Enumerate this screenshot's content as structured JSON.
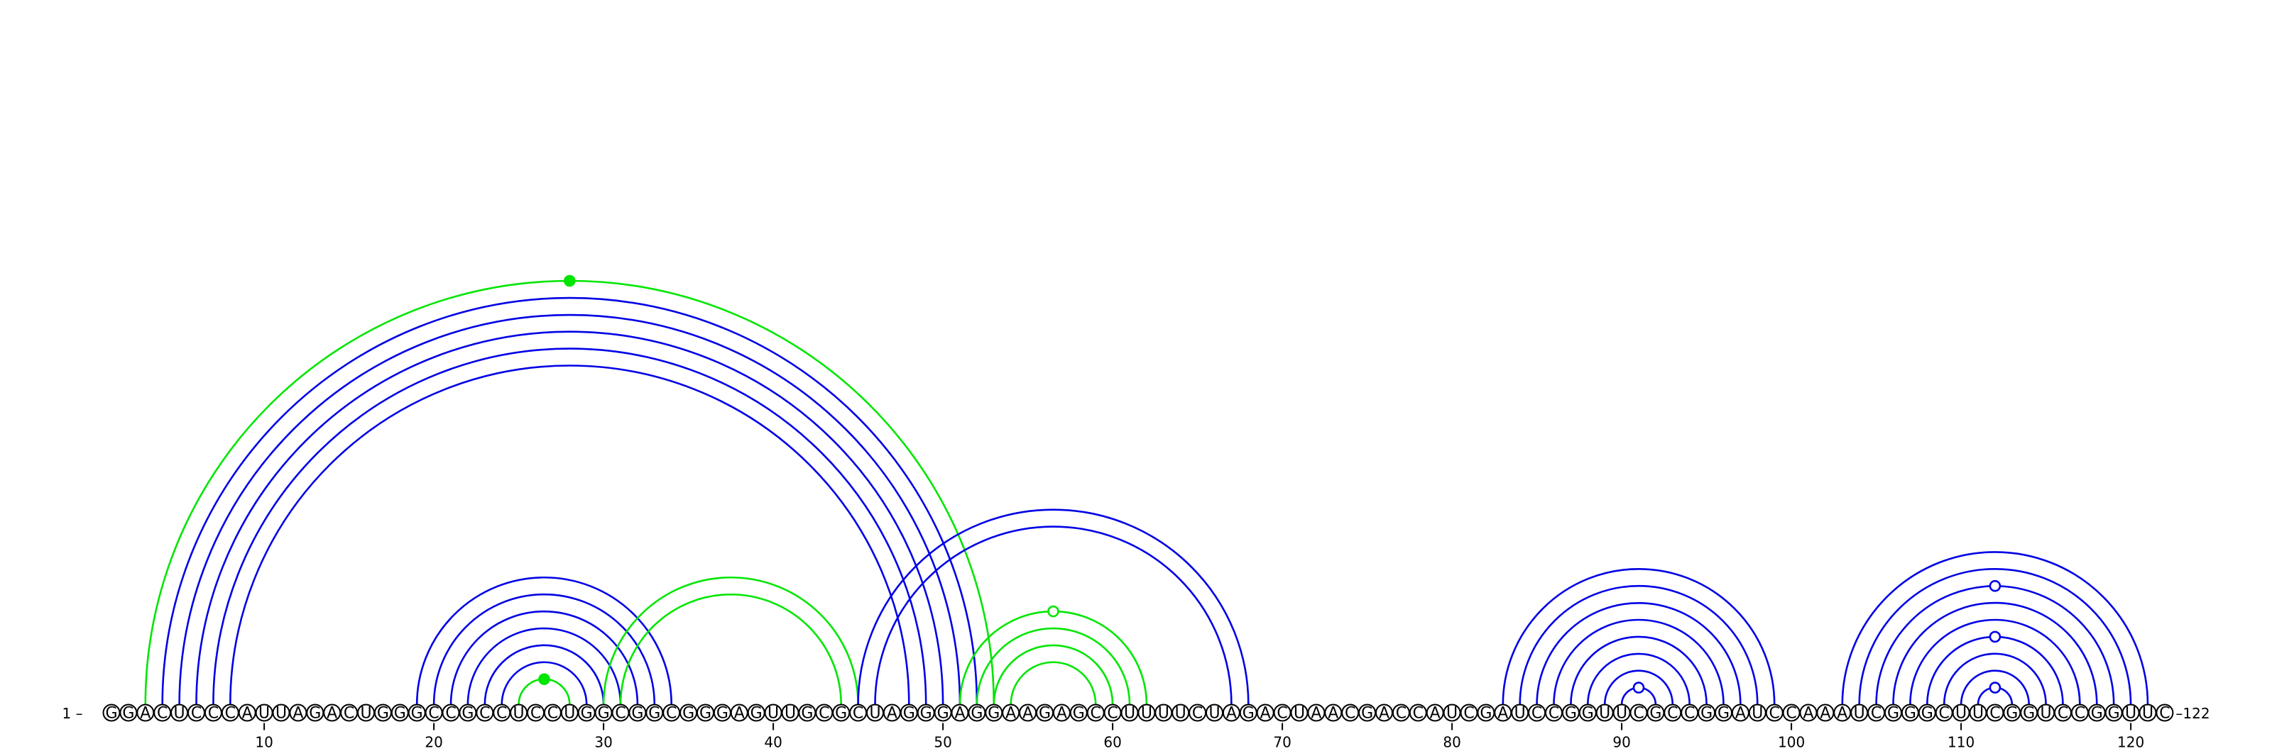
{
  "sequence": "GGACUCCCAUUAGACUGGGCCGCCUCCUGGCGGCGGGAGUUGCGCUAGGGAGGAAGAGCCUUUUCUAGACUAACGACCAUCGAUCCGGUUCGCCGGAUCCAAAUCGGGCUUCGGUCCGGUUC",
  "labels": {
    "start": "1 –",
    "end": "–122"
  },
  "ticks": [
    "10",
    "20",
    "30",
    "40",
    "50",
    "60",
    "70",
    "80",
    "90",
    "100",
    "110",
    "120"
  ],
  "colors": {
    "blue": "#0000e6",
    "green": "#00e600"
  },
  "arcs": [
    {
      "i": 3,
      "j": 53,
      "color": "green"
    },
    {
      "i": 4,
      "j": 52,
      "color": "blue"
    },
    {
      "i": 5,
      "j": 51,
      "color": "blue"
    },
    {
      "i": 6,
      "j": 50,
      "color": "blue"
    },
    {
      "i": 7,
      "j": 49,
      "color": "blue"
    },
    {
      "i": 8,
      "j": 48,
      "color": "blue"
    },
    {
      "i": 19,
      "j": 34,
      "color": "blue"
    },
    {
      "i": 20,
      "j": 33,
      "color": "blue"
    },
    {
      "i": 21,
      "j": 32,
      "color": "blue"
    },
    {
      "i": 22,
      "j": 31,
      "color": "blue"
    },
    {
      "i": 23,
      "j": 30,
      "color": "blue"
    },
    {
      "i": 24,
      "j": 29,
      "color": "blue"
    },
    {
      "i": 25,
      "j": 28,
      "color": "green"
    },
    {
      "i": 30,
      "j": 45,
      "color": "green"
    },
    {
      "i": 31,
      "j": 44,
      "color": "green"
    },
    {
      "i": 45,
      "j": 68,
      "color": "blue"
    },
    {
      "i": 46,
      "j": 67,
      "color": "blue"
    },
    {
      "i": 51,
      "j": 62,
      "color": "green"
    },
    {
      "i": 52,
      "j": 61,
      "color": "green"
    },
    {
      "i": 53,
      "j": 60,
      "color": "green"
    },
    {
      "i": 54,
      "j": 59,
      "color": "green"
    },
    {
      "i": 83,
      "j": 99,
      "color": "blue"
    },
    {
      "i": 84,
      "j": 98,
      "color": "blue"
    },
    {
      "i": 85,
      "j": 97,
      "color": "blue"
    },
    {
      "i": 86,
      "j": 96,
      "color": "blue"
    },
    {
      "i": 87,
      "j": 95,
      "color": "blue"
    },
    {
      "i": 88,
      "j": 94,
      "color": "blue"
    },
    {
      "i": 89,
      "j": 93,
      "color": "blue"
    },
    {
      "i": 90,
      "j": 92,
      "color": "blue"
    },
    {
      "i": 103,
      "j": 121,
      "color": "blue"
    },
    {
      "i": 104,
      "j": 120,
      "color": "blue"
    },
    {
      "i": 105,
      "j": 119,
      "color": "blue"
    },
    {
      "i": 106,
      "j": 118,
      "color": "blue"
    },
    {
      "i": 107,
      "j": 117,
      "color": "blue"
    },
    {
      "i": 108,
      "j": 116,
      "color": "blue"
    },
    {
      "i": 109,
      "j": 115,
      "color": "blue"
    },
    {
      "i": 110,
      "j": 114,
      "color": "blue"
    },
    {
      "i": 111,
      "j": 113,
      "color": "blue"
    }
  ],
  "markers": [
    {
      "i": 3,
      "j": 53,
      "color": "green",
      "style": "filled"
    },
    {
      "i": 25,
      "j": 28,
      "color": "green",
      "style": "filled"
    },
    {
      "i": 51,
      "j": 62,
      "color": "green",
      "style": "open"
    },
    {
      "i": 90,
      "j": 92,
      "color": "blue",
      "style": "open"
    },
    {
      "i": 111,
      "j": 113,
      "color": "blue",
      "style": "open"
    },
    {
      "i": 108,
      "j": 116,
      "color": "blue",
      "style": "open"
    },
    {
      "i": 105,
      "j": 119,
      "color": "blue",
      "style": "open"
    }
  ]
}
